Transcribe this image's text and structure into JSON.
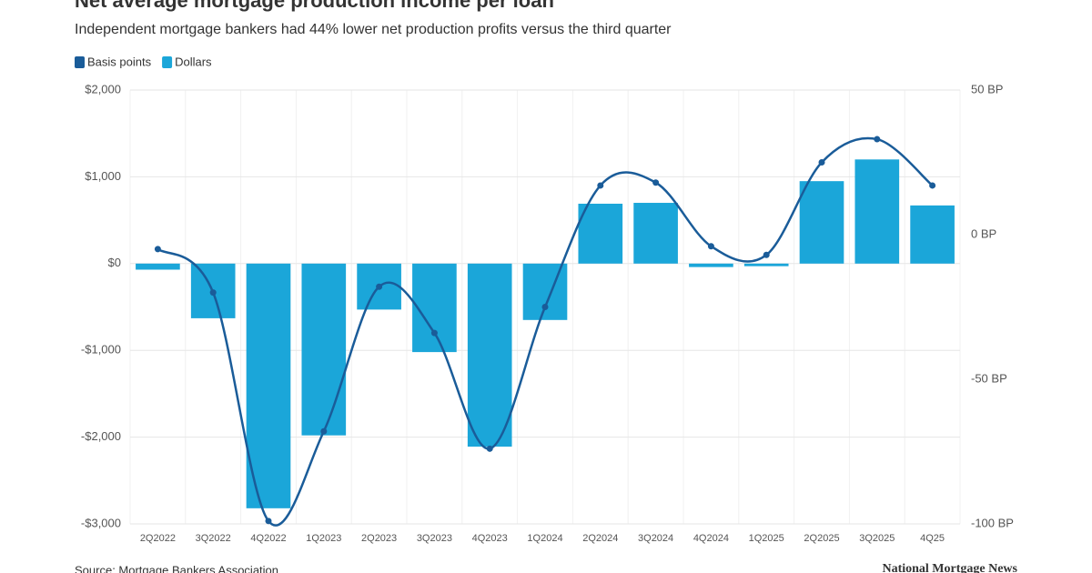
{
  "chart_data": {
    "type": "bar-line",
    "title": "Net average mortgage production income per loan",
    "subtitle": "Independent mortgage bankers had 44% lower net production profits versus the third quarter",
    "source": "Source: Mortgage Bankers Association",
    "brand": "National Mortgage News",
    "categories": [
      "2Q2022",
      "3Q2022",
      "4Q2022",
      "1Q2023",
      "2Q2023",
      "3Q2023",
      "4Q2023",
      "1Q2024",
      "2Q2024",
      "3Q2024",
      "4Q2024",
      "1Q2025",
      "2Q2025",
      "3Q2025",
      "4Q25"
    ],
    "series": [
      {
        "name": "Basis points",
        "color": "#1a5c99",
        "axis": "y2",
        "kind": "line",
        "values": [
          -5,
          -20,
          -99,
          -68,
          -18,
          -34,
          -74,
          -25,
          17,
          18,
          -4,
          -7,
          25,
          33,
          17
        ]
      },
      {
        "name": "Dollars",
        "color": "#1ba6d9",
        "kind": "bar",
        "values": [
          -70,
          -630,
          -2820,
          -1980,
          -530,
          -1020,
          -2110,
          -650,
          690,
          700,
          -40,
          -30,
          950,
          1200,
          670
        ]
      }
    ],
    "ylim": [
      -3000,
      2000
    ],
    "yticks": [
      {
        "value": -3000,
        "label": "-$3,000"
      },
      {
        "value": -2000,
        "label": "-$2,000"
      },
      {
        "value": -1000,
        "label": "-$1,000"
      },
      {
        "value": 0,
        "label": "$0"
      },
      {
        "value": 1000,
        "label": "$1,000"
      },
      {
        "value": 2000,
        "label": "$2,000"
      }
    ],
    "y2lim": [
      -100,
      50
    ],
    "y2ticks": [
      {
        "value": -100,
        "label": "-100 BP"
      },
      {
        "value": -50,
        "label": "-50 BP"
      },
      {
        "value": 0,
        "label": "0 BP"
      },
      {
        "value": 50,
        "label": "50 BP"
      }
    ],
    "grid": true
  }
}
